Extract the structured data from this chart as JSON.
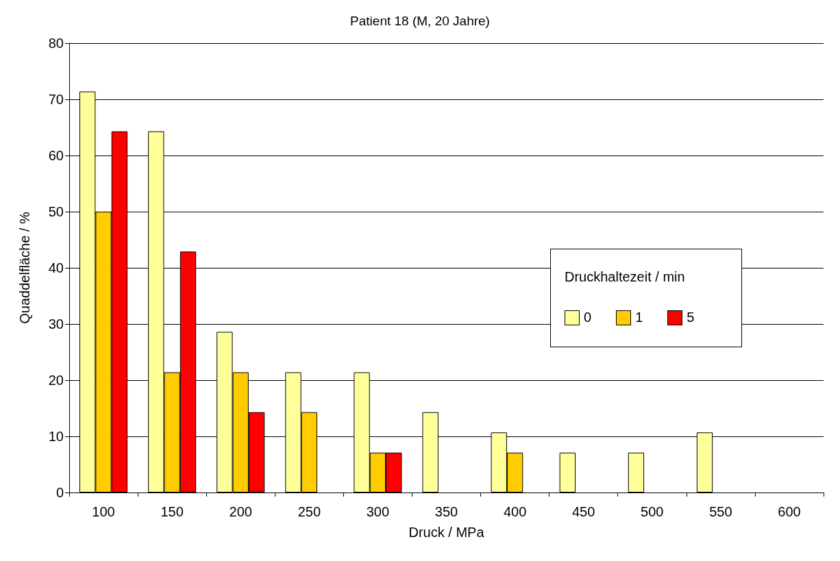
{
  "chart_data": {
    "type": "bar",
    "title": "Patient 18 (M, 20 Jahre)",
    "xlabel": "Druck / MPa",
    "ylabel": "Quaddelfläche / %",
    "legend_title": "Druckhaltezeit / min",
    "categories": [
      "100",
      "150",
      "200",
      "250",
      "300",
      "350",
      "400",
      "450",
      "500",
      "550",
      "600"
    ],
    "series": [
      {
        "name": "0",
        "color": "#ffff99",
        "values": [
          71.4,
          64.3,
          28.6,
          21.4,
          21.4,
          14.3,
          10.7,
          7.1,
          7.1,
          10.7,
          null
        ]
      },
      {
        "name": "1",
        "color": "#ffcc00",
        "values": [
          50,
          21.4,
          21.4,
          14.3,
          7.1,
          null,
          7.1,
          null,
          null,
          null,
          null
        ]
      },
      {
        "name": "5",
        "color": "#ff0000",
        "values": [
          64.3,
          42.9,
          14.3,
          null,
          7.1,
          null,
          null,
          null,
          null,
          null,
          null
        ]
      }
    ],
    "ylim": [
      0,
      80
    ],
    "yticks": [
      0,
      10,
      20,
      30,
      40,
      50,
      60,
      70,
      80
    ],
    "grid": "y",
    "legend": "right"
  }
}
